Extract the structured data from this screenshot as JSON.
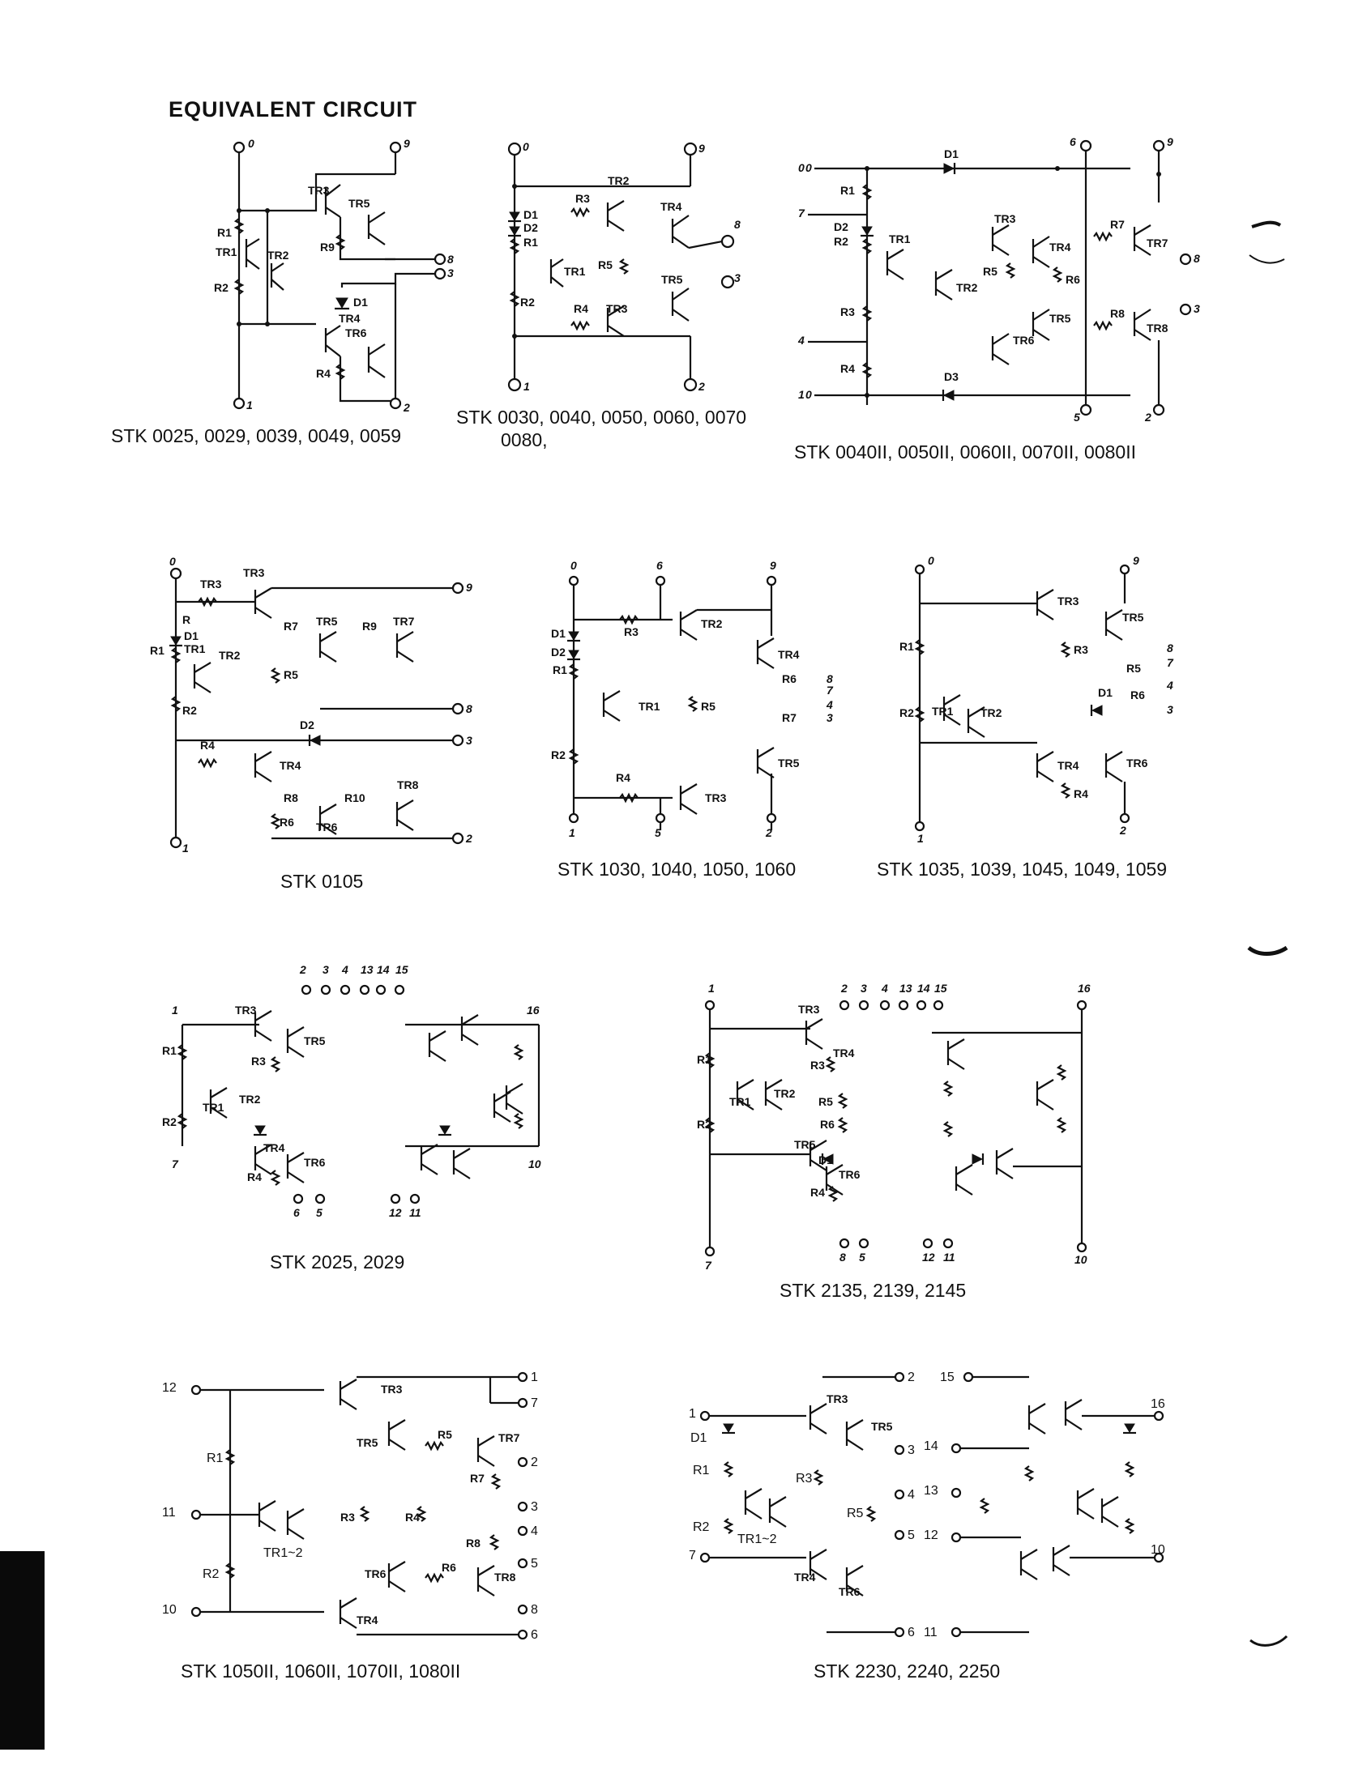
{
  "heading": "EQUIVALENT CIRCUIT",
  "captions": {
    "c1": "STK 0025, 0029, 0039, 0049, 0059",
    "c2a": "STK 0030, 0040, 0050, 0060, 0070",
    "c2b": "0080,",
    "c3": "STK  0040II, 0050II, 0060II, 0070II, 0080II",
    "c4": "STK 0105",
    "c5": "STK 1030, 1040, 1050, 1060",
    "c6": "STK 1035, 1039, 1045, 1049, 1059",
    "c7": "STK 2025, 2029",
    "c8": "STK 2135, 2139, 2145",
    "c9": "STK 1050II, 1060II, 1070II, 1080II",
    "c10": "STK 2230, 2240, 2250"
  },
  "labels": {
    "tr1": "TR1",
    "tr2": "TR2",
    "tr3": "TR3",
    "tr4": "TR4",
    "tr5": "TR5",
    "tr6": "TR6",
    "tr7": "TR7",
    "tr8": "TR8",
    "tr12": "TR1~2",
    "r": "R",
    "r1": "R1",
    "r2": "R2",
    "r3": "R3",
    "r4": "R4",
    "r5": "R5",
    "r6": "R6",
    "r7": "R7",
    "r8": "R8",
    "r9": "R9",
    "r10": "R10",
    "d1": "D1",
    "d2": "D2",
    "d3": "D3",
    "p0": "0",
    "p1": "1",
    "p2": "2",
    "p3": "3",
    "p4": "4",
    "p5": "5",
    "p6": "6",
    "p7": "7",
    "p8": "8",
    "p9": "9",
    "p10": "10",
    "p11": "11",
    "p12": "12",
    "p13": "13",
    "p14": "14",
    "p15": "15",
    "p16": "16"
  }
}
